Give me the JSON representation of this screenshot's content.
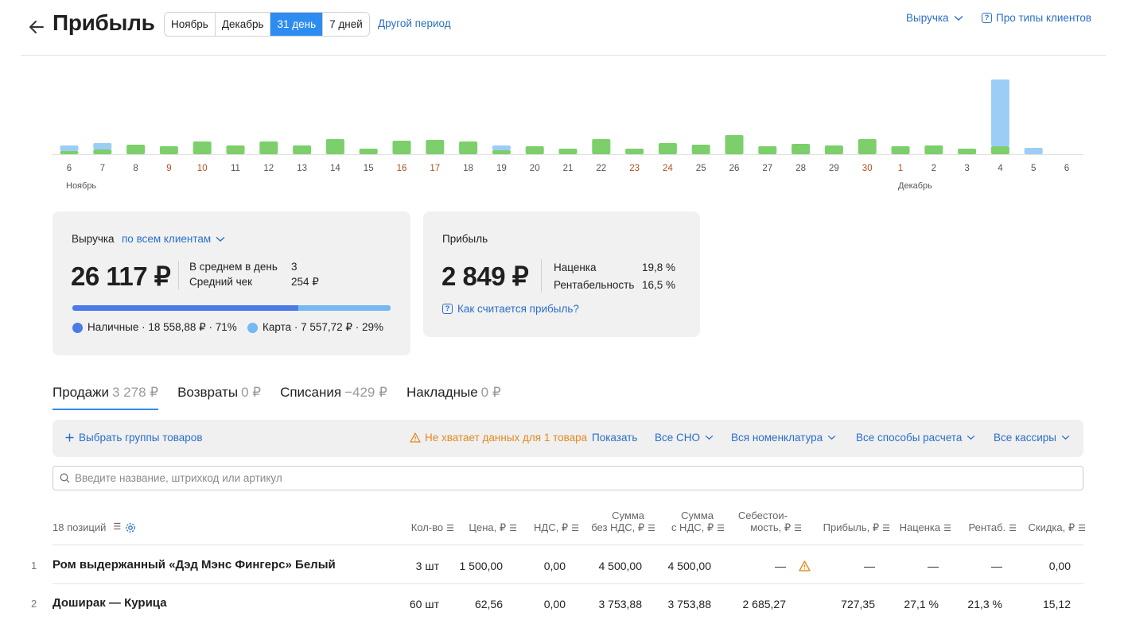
{
  "header": {
    "title": "Прибыль",
    "periods": [
      "Ноябрь",
      "Декабрь",
      "31 день",
      "7 дней"
    ],
    "active_period": "31 день",
    "other_period": "Другой период",
    "metric_dropdown": "Выручка",
    "client_types_link": "Про типы клиентов"
  },
  "chart_data": {
    "type": "bar",
    "categories": [
      "6",
      "7",
      "8",
      "9",
      "10",
      "11",
      "12",
      "13",
      "14",
      "15",
      "16",
      "17",
      "18",
      "19",
      "20",
      "21",
      "22",
      "23",
      "24",
      "25",
      "26",
      "27",
      "28",
      "29",
      "30",
      "1",
      "2",
      "3",
      "4",
      "5",
      "6"
    ],
    "weekend_days": [
      3,
      4,
      10,
      11,
      17,
      18,
      24,
      25
    ],
    "month_labels": [
      "Ноябрь",
      "Декабрь"
    ],
    "series": [
      {
        "color": "#7ccf6b",
        "values": [
          4,
          6,
          12,
          10,
          16,
          11,
          16,
          11,
          19,
          7,
          17,
          18,
          16,
          5,
          10,
          7,
          19,
          7,
          14,
          12,
          24,
          10,
          13,
          11,
          19,
          10,
          11,
          7,
          10,
          0,
          0
        ]
      },
      {
        "color": "#9ccdf7",
        "values": [
          7,
          8,
          0,
          0,
          0,
          0,
          0,
          0,
          0,
          0,
          0,
          0,
          0,
          6,
          0,
          0,
          0,
          0,
          0,
          0,
          0,
          0,
          0,
          0,
          0,
          0,
          0,
          0,
          84,
          8,
          0
        ]
      }
    ],
    "colors": {
      "weekday_label": "#555555",
      "weekend_label": "#b0501e"
    }
  },
  "revenue_card": {
    "title": "Выручка",
    "filter": "по всем клиентам",
    "total": "26 117 ₽",
    "avg_day_label": "В среднем в день",
    "avg_day_value": "3",
    "avg_check_label": "Средний чек",
    "avg_check_value": "254 ₽",
    "cash_share": 0.71,
    "cash_legend": "Наличные · 18 558,88 ₽ · 71%",
    "card_legend": "Карта · 7 557,72 ₽ · 29%"
  },
  "profit_card": {
    "title": "Прибыль",
    "total": "2 849 ₽",
    "markup_label": "Наценка",
    "markup_value": "19,8 %",
    "profitability_label": "Рентабельность",
    "profitability_value": "16,5 %",
    "how_link": "Как считается прибыль?"
  },
  "tabs": [
    {
      "label": "Продажи",
      "amount": "3 278 ₽"
    },
    {
      "label": "Возвраты",
      "amount": "0 ₽"
    },
    {
      "label": "Списания",
      "amount": "−429 ₽"
    },
    {
      "label": "Накладные",
      "amount": "0 ₽"
    }
  ],
  "filters": {
    "groups": "Выбрать группы товаров",
    "warning": "Не хватает данных для 1 товара",
    "show": "Показать",
    "sno": "Все СНО",
    "nomenclature": "Вся номенклатура",
    "payment": "Все способы расчета",
    "cashiers": "Все кассиры"
  },
  "search": {
    "placeholder": "Введите название, штрихкод или артикул"
  },
  "table": {
    "positions": "18 позиций",
    "columns": {
      "qty": "Кол-во",
      "price": "Цена, ₽",
      "vat": "НДС, ₽",
      "sum_no_vat_1": "Сумма",
      "sum_no_vat_2": "без НДС, ₽",
      "sum_vat_1": "Сумма",
      "sum_vat_2": "с НДС, ₽",
      "cost_1": "Себестои-",
      "cost_2": "мость, ₽",
      "profit": "Прибыль, ₽",
      "markup": "Наценка",
      "rentab": "Рентаб.",
      "discount": "Скидка, ₽"
    },
    "rows": [
      {
        "n": "1",
        "name": "Ром выдержанный «Дэд Мэнс Фингерс» Белый",
        "qty": "3 шт",
        "price": "1 500,00",
        "vat": "0,00",
        "sum_no_vat": "4 500,00",
        "sum_vat": "4 500,00",
        "cost": "—",
        "profit": "—",
        "markup": "—",
        "rentab": "—",
        "discount": "0,00"
      },
      {
        "n": "2",
        "name": "Доширак — Курица",
        "qty": "60 шт",
        "price": "62,56",
        "vat": "0,00",
        "sum_no_vat": "3 753,88",
        "sum_vat": "3 753,88",
        "cost": "2 685,27",
        "profit": "727,35",
        "markup": "27,1 %",
        "rentab": "21,3 %",
        "discount": "15,12"
      }
    ]
  }
}
